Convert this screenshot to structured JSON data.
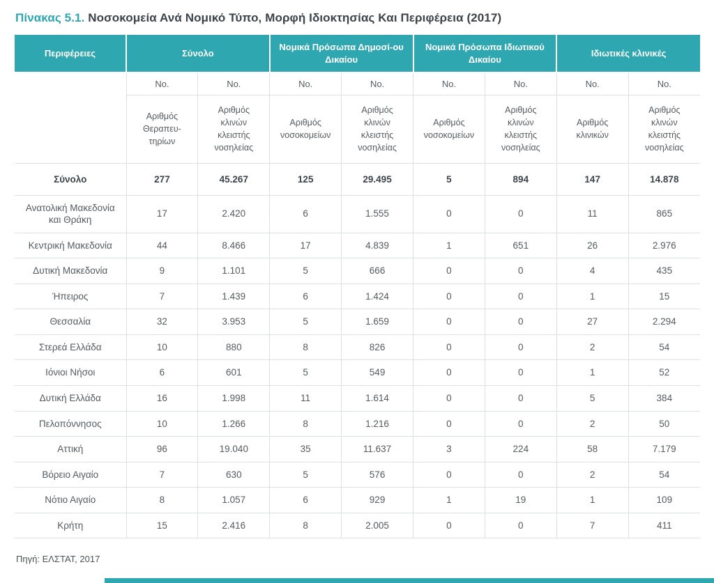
{
  "page": {
    "title_accent": "Πίνακας 5.1.",
    "title_text": " Νοσοκομεία Ανά Νομικό Τύπο, Μορφή Ιδιοκτησίας Και Περιφέρεια (2017)",
    "source": "Πηγή: ΕΛΣΤΑΤ, 2017"
  },
  "colors": {
    "accent_teal": "#2ea7b0",
    "header_text": "#ffffff",
    "body_text": "#555a5f",
    "title_text": "#3d434a",
    "grid_line": "#dce0e3"
  },
  "chart_data": {
    "type": "table",
    "title": "Πίνακας 5.1. Νοσοκομεία Ανά Νομικό Τύπο, Μορφή Ιδιοκτησίας Και Περιφέρεια (2017)",
    "group_headers": [
      "Περιφέρειες",
      "Σύνολο",
      "Νομικά Πρόσωπα Δημοσί-ου Δικαίου",
      "Νομικά Πρόσωπα Ιδιωτικού Δικαίου",
      "Ιδιωτικές κλινικές"
    ],
    "unit_label": "No.",
    "sub_headers": [
      "Αριθμός Θεραπευ-τηρίων",
      "Αριθμός κλινών κλειστής νοσηλείας",
      "Αριθμός νοσοκομείων",
      "Αριθμός κλινών κλειστής νοσηλείας",
      "Αριθμός νοσοκομείων",
      "Αριθμός κλινών κλειστής νοσηλείας",
      "Αριθμός κλινικών",
      "Αριθμός κλινών κλειστής νοσηλείας"
    ],
    "total_row": {
      "label": "Σύνολο",
      "values": [
        "277",
        "45.267",
        "125",
        "29.495",
        "5",
        "894",
        "147",
        "14.878"
      ]
    },
    "rows": [
      {
        "label": "Ανατολική Μακεδονία και Θράκη",
        "values": [
          "17",
          "2.420",
          "6",
          "1.555",
          "0",
          "0",
          "11",
          "865"
        ]
      },
      {
        "label": "Κεντρική Μακεδονία",
        "values": [
          "44",
          "8.466",
          "17",
          "4.839",
          "1",
          "651",
          "26",
          "2.976"
        ]
      },
      {
        "label": "Δυτική Μακεδονία",
        "values": [
          "9",
          "1.101",
          "5",
          "666",
          "0",
          "0",
          "4",
          "435"
        ]
      },
      {
        "label": "Ήπειρος",
        "values": [
          "7",
          "1.439",
          "6",
          "1.424",
          "0",
          "0",
          "1",
          "15"
        ]
      },
      {
        "label": "Θεσσαλία",
        "values": [
          "32",
          "3.953",
          "5",
          "1.659",
          "0",
          "0",
          "27",
          "2.294"
        ]
      },
      {
        "label": "Στερεά Ελλάδα",
        "values": [
          "10",
          "880",
          "8",
          "826",
          "0",
          "0",
          "2",
          "54"
        ]
      },
      {
        "label": "Ιόνιοι Νήσοι",
        "values": [
          "6",
          "601",
          "5",
          "549",
          "0",
          "0",
          "1",
          "52"
        ]
      },
      {
        "label": "Δυτική Ελλάδα",
        "values": [
          "16",
          "1.998",
          "11",
          "1.614",
          "0",
          "0",
          "5",
          "384"
        ]
      },
      {
        "label": "Πελοπόννησος",
        "values": [
          "10",
          "1.266",
          "8",
          "1.216",
          "0",
          "0",
          "2",
          "50"
        ]
      },
      {
        "label": "Αττική",
        "values": [
          "96",
          "19.040",
          "35",
          "11.637",
          "3",
          "224",
          "58",
          "7.179"
        ]
      },
      {
        "label": "Βόρειο Αιγαίο",
        "values": [
          "7",
          "630",
          "5",
          "576",
          "0",
          "0",
          "2",
          "54"
        ]
      },
      {
        "label": "Νότιο Αιγαίο",
        "values": [
          "8",
          "1.057",
          "6",
          "929",
          "1",
          "19",
          "1",
          "109"
        ]
      },
      {
        "label": "Κρήτη",
        "values": [
          "15",
          "2.416",
          "8",
          "2.005",
          "0",
          "0",
          "7",
          "411"
        ]
      }
    ]
  }
}
